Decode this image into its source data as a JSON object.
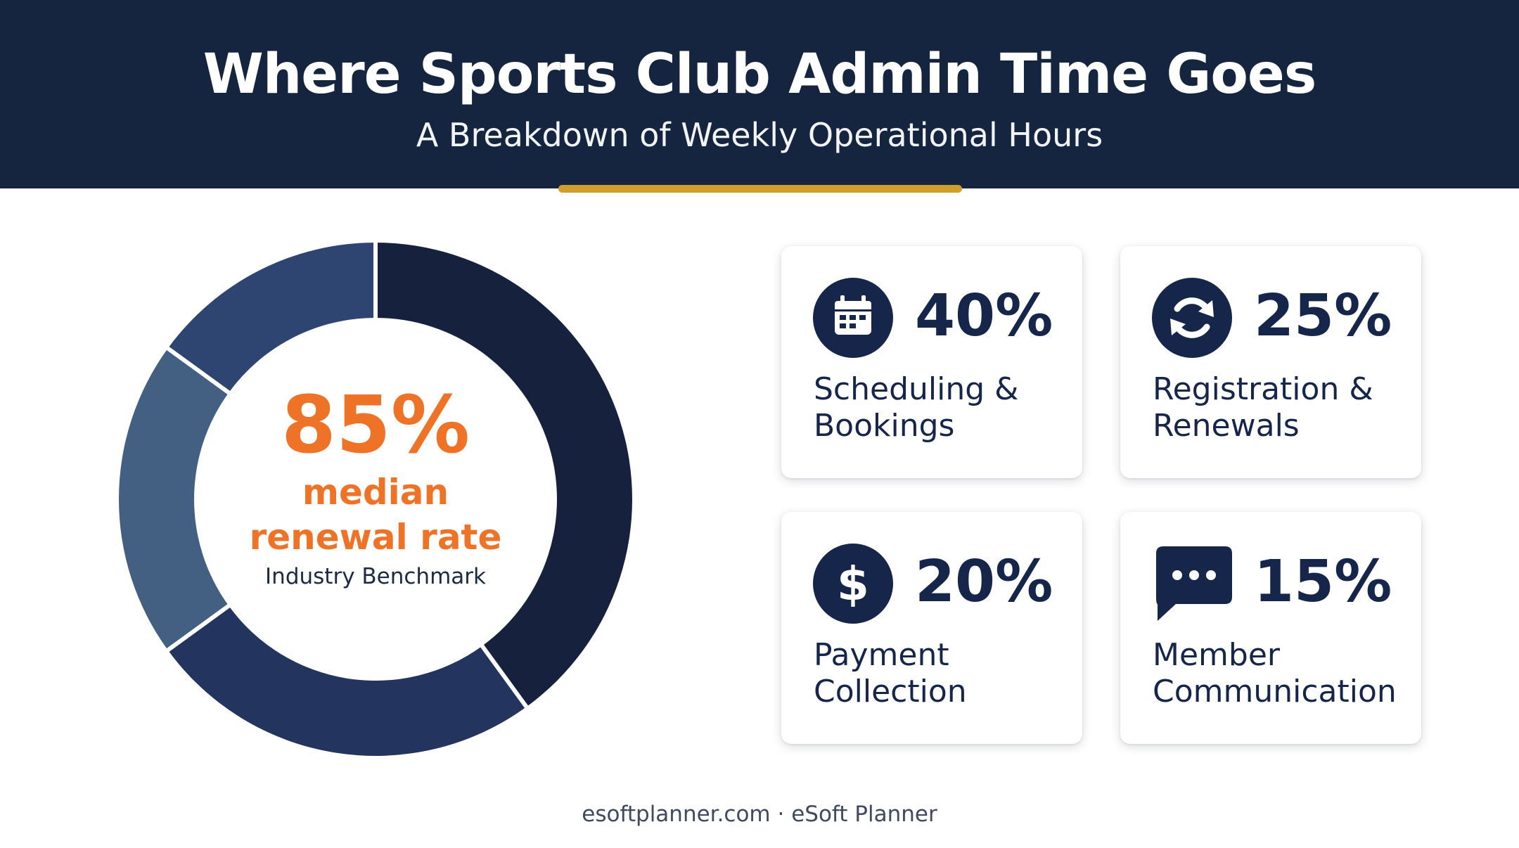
{
  "header": {
    "title": "Where Sports Club Admin Time Goes",
    "subtitle": "A Breakdown of Weekly Operational Hours"
  },
  "colors": {
    "header_background": "#15253f",
    "accent_bar": "#cf9e2b",
    "highlight_orange": "#ee7326",
    "text_navy": "#16264a"
  },
  "center": {
    "value": "85%",
    "label_line1": "median",
    "label_line2": "renewal rate",
    "note": "Industry Benchmark"
  },
  "chart_data": {
    "type": "pie",
    "donut": true,
    "categories": [
      "Scheduling & Bookings",
      "Registration & Renewals",
      "Payment Collection",
      "Member Communication"
    ],
    "values": [
      40,
      25,
      20,
      15
    ],
    "colors": [
      "#16223d",
      "#23355f",
      "#435f82",
      "#2e4572"
    ],
    "start_angle_deg": 0,
    "direction": "clockwise",
    "legend": "cards-right"
  },
  "cards": [
    {
      "value": "40%",
      "label_line1": "Scheduling &",
      "label_line2": "Bookings",
      "icon": "calendar-icon"
    },
    {
      "value": "25%",
      "label_line1": "Registration &",
      "label_line2": "Renewals",
      "icon": "refresh-icon"
    },
    {
      "value": "20%",
      "label_line1": "Payment",
      "label_line2": "Collection",
      "icon": "dollar-icon"
    },
    {
      "value": "15%",
      "label_line1": "Member",
      "label_line2": "Communication",
      "icon": "chat-bubble-icon"
    }
  ],
  "footer": {
    "text": "esoftplanner.com · eSoft Planner"
  }
}
